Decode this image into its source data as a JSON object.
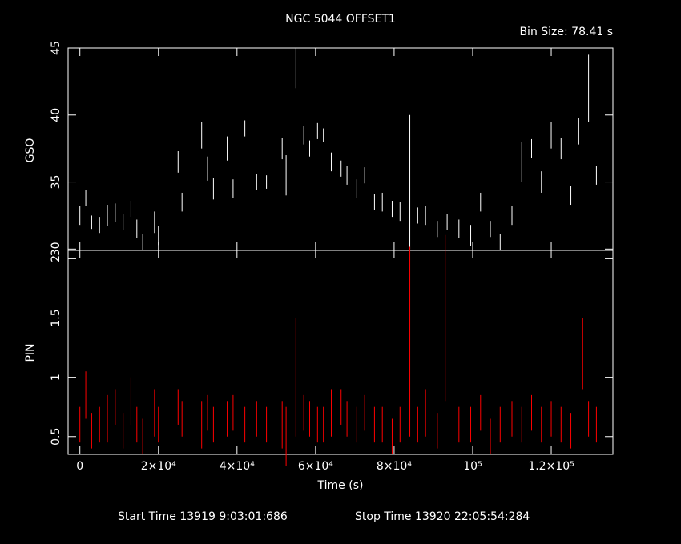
{
  "chart_data": [
    {
      "type": "errorbar",
      "title": "NGC 5044 OFFSET1",
      "annotation": "Bin Size:  78.41  s",
      "ylabel": "GSO",
      "color": "#ffffff",
      "xlim": [
        -3000,
        135700
      ],
      "ylim": [
        29.9,
        45
      ],
      "yticks": [
        30,
        35,
        40,
        45
      ],
      "x": [
        0,
        1500,
        3000,
        5000,
        7000,
        9000,
        11000,
        13000,
        14500,
        16000,
        19000,
        20000,
        25000,
        26000,
        31000,
        32500,
        34000,
        37500,
        39000,
        42000,
        45000,
        47500,
        51500,
        52500,
        55000,
        57000,
        58500,
        60500,
        62000,
        64000,
        66500,
        68000,
        70500,
        72500,
        75000,
        77000,
        79500,
        81500,
        84000,
        86000,
        88000,
        91000,
        93500,
        96500,
        99500,
        102000,
        104500,
        107000,
        110000,
        112500,
        115000,
        117500,
        120000,
        122500,
        125000,
        127000,
        129500,
        131500
      ],
      "values": [
        32.5,
        33.8,
        32,
        31.8,
        32.5,
        32.7,
        32,
        33,
        31.5,
        30.5,
        32,
        31,
        36.5,
        33.5,
        38.5,
        36,
        34.5,
        37.5,
        34.5,
        39,
        35,
        35,
        37.5,
        35.5,
        43.5,
        38.5,
        37.5,
        38.8,
        38.5,
        36.5,
        36,
        35.5,
        34.5,
        35.5,
        33.5,
        33.5,
        33,
        32.8,
        35,
        32.5,
        32.5,
        31.5,
        32,
        31.5,
        31,
        33.5,
        31.5,
        30.5,
        32.5,
        36.5,
        37.5,
        35,
        38.5,
        37.5,
        34,
        38.8,
        42,
        35.5
      ],
      "errors": [
        0.7,
        0.6,
        0.5,
        0.6,
        0.8,
        0.7,
        0.6,
        0.6,
        0.7,
        0.6,
        0.8,
        0.7,
        0.8,
        0.7,
        1,
        0.9,
        0.8,
        0.9,
        0.7,
        0.6,
        0.6,
        0.5,
        0.8,
        1.5,
        1.5,
        0.7,
        0.6,
        0.6,
        0.5,
        0.7,
        0.6,
        0.7,
        0.7,
        0.6,
        0.6,
        0.7,
        0.6,
        0.7,
        5,
        0.6,
        0.7,
        0.6,
        0.6,
        0.7,
        0.8,
        0.7,
        0.6,
        0.6,
        0.7,
        1.5,
        0.7,
        0.8,
        1,
        0.8,
        0.7,
        1,
        2.5,
        0.7
      ]
    },
    {
      "type": "errorbar",
      "xlabel": "Time (s)",
      "ylabel": "PIN",
      "color": "#ff0000",
      "xlim": [
        -3000,
        135700
      ],
      "ylim": [
        0.35,
        2.07
      ],
      "yticks": [
        0.5,
        1,
        1.5,
        2
      ],
      "xticks": [
        {
          "value": 0,
          "label": "0"
        },
        {
          "value": 20000,
          "label": "2×10⁴"
        },
        {
          "value": 40000,
          "label": "4×10⁴"
        },
        {
          "value": 60000,
          "label": "6×10⁴"
        },
        {
          "value": 80000,
          "label": "8×10⁴"
        },
        {
          "value": 100000,
          "label": "10⁵"
        },
        {
          "value": 120000,
          "label": "1.2×10⁵"
        }
      ],
      "x": [
        0,
        1500,
        3000,
        5000,
        7000,
        9000,
        11000,
        13000,
        14500,
        16000,
        19000,
        20000,
        25000,
        26000,
        31000,
        32500,
        34000,
        37500,
        39000,
        42000,
        45000,
        47500,
        51500,
        52500,
        55000,
        57000,
        58500,
        60500,
        62000,
        64000,
        66500,
        68000,
        70500,
        72500,
        75000,
        77000,
        79500,
        81500,
        84000,
        86000,
        88000,
        91000,
        93000,
        96500,
        99500,
        102000,
        104500,
        107000,
        110000,
        112500,
        115000,
        117500,
        120000,
        122500,
        125000,
        128000,
        129500,
        131500
      ],
      "values": [
        0.6,
        0.85,
        0.55,
        0.6,
        0.65,
        0.75,
        0.55,
        0.8,
        0.6,
        0.5,
        0.7,
        0.6,
        0.75,
        0.65,
        0.6,
        0.7,
        0.6,
        0.65,
        0.7,
        0.6,
        0.65,
        0.6,
        0.6,
        0.5,
        1.0,
        0.7,
        0.65,
        0.6,
        0.6,
        0.7,
        0.75,
        0.65,
        0.6,
        0.7,
        0.6,
        0.6,
        0.5,
        0.6,
        1.3,
        0.6,
        0.7,
        0.55,
        1.5,
        0.6,
        0.6,
        0.7,
        0.5,
        0.6,
        0.65,
        0.6,
        0.7,
        0.6,
        0.65,
        0.6,
        0.55,
        1.2,
        0.65,
        0.6
      ],
      "errors": [
        0.15,
        0.2,
        0.15,
        0.15,
        0.2,
        0.15,
        0.15,
        0.2,
        0.15,
        0.15,
        0.2,
        0.15,
        0.15,
        0.15,
        0.2,
        0.15,
        0.15,
        0.15,
        0.15,
        0.15,
        0.15,
        0.15,
        0.2,
        0.25,
        0.5,
        0.15,
        0.15,
        0.15,
        0.15,
        0.2,
        0.15,
        0.15,
        0.15,
        0.15,
        0.15,
        0.15,
        0.15,
        0.15,
        0.8,
        0.15,
        0.2,
        0.15,
        0.7,
        0.15,
        0.15,
        0.15,
        0.15,
        0.15,
        0.15,
        0.15,
        0.15,
        0.15,
        0.15,
        0.15,
        0.15,
        0.3,
        0.15,
        0.15
      ],
      "footer": [
        "Start Time 13919  9:03:01:686",
        "Stop Time 13920 22:05:54:284"
      ]
    }
  ]
}
